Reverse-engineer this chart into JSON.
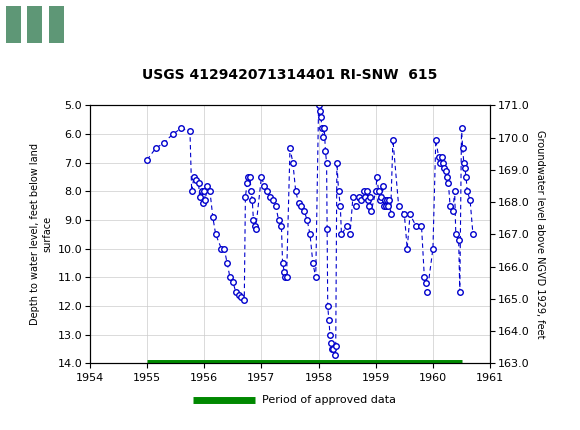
{
  "title": "USGS 412942071314401 RI-SNW  615",
  "ylabel_left": "Depth to water level, feet below land\nsurface",
  "ylabel_right": "Groundwater level above NGVD 1929, feet",
  "xlim": [
    1954,
    1961
  ],
  "ylim_left": [
    14.0,
    5.0
  ],
  "ylim_right": [
    163.0,
    171.0
  ],
  "yticks_left": [
    5.0,
    6.0,
    7.0,
    8.0,
    9.0,
    10.0,
    11.0,
    12.0,
    13.0,
    14.0
  ],
  "yticks_right": [
    163.0,
    164.0,
    165.0,
    166.0,
    167.0,
    168.0,
    169.0,
    170.0,
    171.0
  ],
  "xticks": [
    1954,
    1955,
    1956,
    1957,
    1958,
    1959,
    1960,
    1961
  ],
  "header_color": "#1a6b3c",
  "data_color": "#0000cc",
  "approved_period_color": "#008800",
  "approved_period_y": 14.0,
  "approved_period_start": 1955.0,
  "approved_period_end": 1960.5,
  "data_points": [
    [
      1955.0,
      6.9
    ],
    [
      1955.15,
      6.5
    ],
    [
      1955.3,
      6.3
    ],
    [
      1955.45,
      6.0
    ],
    [
      1955.6,
      5.8
    ],
    [
      1955.75,
      5.9
    ],
    [
      1955.78,
      8.0
    ],
    [
      1955.82,
      7.5
    ],
    [
      1955.86,
      7.6
    ],
    [
      1955.9,
      7.7
    ],
    [
      1955.92,
      8.2
    ],
    [
      1955.96,
      8.0
    ],
    [
      1955.97,
      8.4
    ],
    [
      1956.0,
      8.0
    ],
    [
      1956.02,
      8.3
    ],
    [
      1956.05,
      7.8
    ],
    [
      1956.1,
      8.0
    ],
    [
      1956.15,
      8.9
    ],
    [
      1956.2,
      9.5
    ],
    [
      1956.3,
      10.0
    ],
    [
      1956.35,
      10.0
    ],
    [
      1956.4,
      10.5
    ],
    [
      1956.45,
      11.0
    ],
    [
      1956.5,
      11.15
    ],
    [
      1956.55,
      11.5
    ],
    [
      1956.6,
      11.6
    ],
    [
      1956.65,
      11.7
    ],
    [
      1956.7,
      11.8
    ],
    [
      1956.72,
      8.2
    ],
    [
      1956.75,
      7.7
    ],
    [
      1956.77,
      7.5
    ],
    [
      1956.8,
      7.5
    ],
    [
      1956.82,
      8.0
    ],
    [
      1956.84,
      8.3
    ],
    [
      1956.86,
      9.0
    ],
    [
      1956.88,
      9.2
    ],
    [
      1956.9,
      9.3
    ],
    [
      1957.0,
      7.5
    ],
    [
      1957.05,
      7.8
    ],
    [
      1957.1,
      8.0
    ],
    [
      1957.15,
      8.2
    ],
    [
      1957.2,
      8.3
    ],
    [
      1957.25,
      8.5
    ],
    [
      1957.3,
      9.0
    ],
    [
      1957.35,
      9.2
    ],
    [
      1957.37,
      10.5
    ],
    [
      1957.4,
      10.8
    ],
    [
      1957.42,
      11.0
    ],
    [
      1957.44,
      11.0
    ],
    [
      1957.5,
      6.5
    ],
    [
      1957.55,
      7.0
    ],
    [
      1957.6,
      8.0
    ],
    [
      1957.65,
      8.4
    ],
    [
      1957.7,
      8.5
    ],
    [
      1957.75,
      8.7
    ],
    [
      1957.8,
      9.0
    ],
    [
      1957.85,
      9.5
    ],
    [
      1957.9,
      10.5
    ],
    [
      1957.95,
      11.0
    ],
    [
      1958.0,
      5.0
    ],
    [
      1958.02,
      5.2
    ],
    [
      1958.04,
      5.4
    ],
    [
      1958.06,
      5.8
    ],
    [
      1958.08,
      6.1
    ],
    [
      1958.1,
      5.8
    ],
    [
      1958.12,
      6.6
    ],
    [
      1958.14,
      7.0
    ],
    [
      1958.15,
      9.3
    ],
    [
      1958.16,
      12.0
    ],
    [
      1958.18,
      12.5
    ],
    [
      1958.2,
      13.0
    ],
    [
      1958.22,
      13.3
    ],
    [
      1958.24,
      13.5
    ],
    [
      1958.26,
      13.5
    ],
    [
      1958.28,
      13.7
    ],
    [
      1958.3,
      13.4
    ],
    [
      1958.32,
      7.0
    ],
    [
      1958.35,
      8.0
    ],
    [
      1958.38,
      8.5
    ],
    [
      1958.4,
      9.5
    ],
    [
      1958.5,
      9.2
    ],
    [
      1958.55,
      9.5
    ],
    [
      1958.6,
      8.2
    ],
    [
      1958.65,
      8.5
    ],
    [
      1958.7,
      8.2
    ],
    [
      1958.75,
      8.3
    ],
    [
      1958.8,
      8.0
    ],
    [
      1958.82,
      8.2
    ],
    [
      1958.84,
      8.0
    ],
    [
      1958.86,
      8.3
    ],
    [
      1958.88,
      8.5
    ],
    [
      1958.9,
      8.2
    ],
    [
      1958.92,
      8.7
    ],
    [
      1959.0,
      8.0
    ],
    [
      1959.02,
      7.5
    ],
    [
      1959.05,
      8.0
    ],
    [
      1959.08,
      8.3
    ],
    [
      1959.1,
      8.2
    ],
    [
      1959.12,
      7.8
    ],
    [
      1959.14,
      8.5
    ],
    [
      1959.16,
      8.3
    ],
    [
      1959.18,
      8.5
    ],
    [
      1959.2,
      8.3
    ],
    [
      1959.22,
      8.5
    ],
    [
      1959.24,
      8.3
    ],
    [
      1959.26,
      8.8
    ],
    [
      1959.3,
      6.2
    ],
    [
      1959.4,
      8.5
    ],
    [
      1959.5,
      8.8
    ],
    [
      1959.55,
      10.0
    ],
    [
      1959.6,
      8.8
    ],
    [
      1959.7,
      9.2
    ],
    [
      1959.8,
      9.2
    ],
    [
      1959.85,
      11.0
    ],
    [
      1959.88,
      11.2
    ],
    [
      1959.9,
      11.5
    ],
    [
      1960.0,
      10.0
    ],
    [
      1960.05,
      6.2
    ],
    [
      1960.1,
      6.8
    ],
    [
      1960.12,
      7.0
    ],
    [
      1960.15,
      6.8
    ],
    [
      1960.17,
      7.0
    ],
    [
      1960.2,
      7.2
    ],
    [
      1960.22,
      7.3
    ],
    [
      1960.25,
      7.5
    ],
    [
      1960.27,
      7.7
    ],
    [
      1960.3,
      8.5
    ],
    [
      1960.35,
      8.7
    ],
    [
      1960.38,
      8.0
    ],
    [
      1960.4,
      9.5
    ],
    [
      1960.45,
      9.7
    ],
    [
      1960.47,
      11.5
    ],
    [
      1960.5,
      5.8
    ],
    [
      1960.52,
      6.5
    ],
    [
      1960.54,
      7.0
    ],
    [
      1960.56,
      7.2
    ],
    [
      1960.58,
      7.5
    ],
    [
      1960.6,
      8.0
    ],
    [
      1960.65,
      8.3
    ],
    [
      1960.7,
      9.5
    ]
  ],
  "background_color": "#ffffff",
  "plot_bg_color": "#ffffff",
  "grid_color": "#cccccc"
}
